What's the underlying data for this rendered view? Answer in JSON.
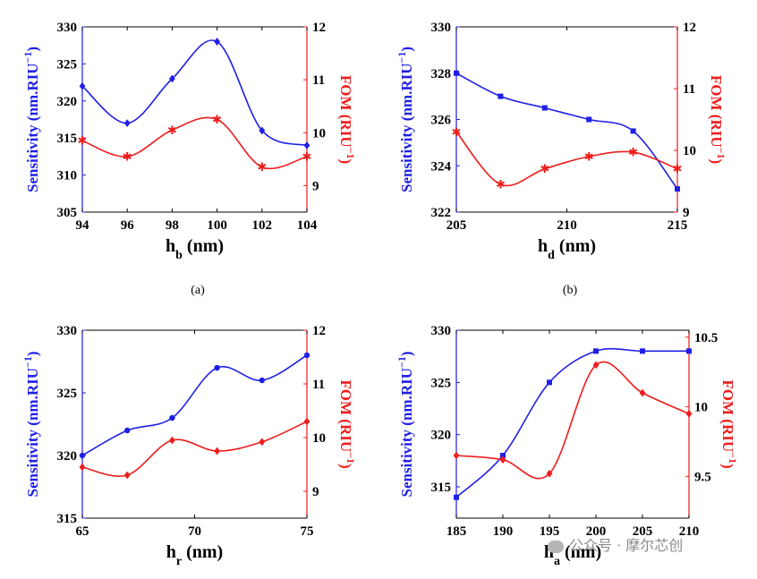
{
  "colors": {
    "left": "#1f1fe6",
    "right": "#ee1c1c",
    "axis": "#000000"
  },
  "watermark": {
    "text": "公众号 · 摩尔芯创",
    "icon": "wechat-icon"
  },
  "chart_data": [
    {
      "type": "line",
      "caption": "(a)",
      "xlabel": "h",
      "xlabel_sub": "b",
      "xlabel_unit": " (nm)",
      "xlim": [
        94,
        104
      ],
      "xticks": [
        94,
        96,
        98,
        100,
        102,
        104
      ],
      "ylabel_left": "Sensitivity (nm.RIU",
      "ylabel_left_close": ")",
      "ylim_left": [
        305,
        330
      ],
      "yticks_left": [
        305,
        310,
        315,
        320,
        325,
        330
      ],
      "ylabel_right": "FOM (RIU",
      "ylabel_right_close": ")",
      "ylim_right": [
        8.5,
        12
      ],
      "yticks_right": [
        9,
        10,
        11,
        12
      ],
      "sup": "−1",
      "series": [
        {
          "axis": "left",
          "marker": "diamond",
          "x": [
            94,
            96,
            98,
            100,
            102,
            104
          ],
          "values": [
            322,
            317,
            323,
            328,
            316,
            314
          ]
        },
        {
          "axis": "right",
          "marker": "star",
          "x": [
            94,
            96,
            98,
            100,
            102,
            104
          ],
          "values": [
            9.85,
            9.55,
            10.05,
            10.25,
            9.35,
            9.55
          ]
        }
      ]
    },
    {
      "type": "line",
      "caption": "(b)",
      "xlabel": "h",
      "xlabel_sub": "d",
      "xlabel_unit": " (nm)",
      "xlim": [
        205,
        215
      ],
      "xticks": [
        205,
        210,
        215
      ],
      "ylabel_left": "Sensitivity (nm.RIU",
      "ylabel_left_close": ")",
      "ylim_left": [
        322,
        330
      ],
      "yticks_left": [
        322,
        324,
        326,
        328,
        330
      ],
      "ylabel_right": "FOM (RIU",
      "ylabel_right_close": ")",
      "ylim_right": [
        9,
        12
      ],
      "yticks_right": [
        9,
        10,
        11,
        12
      ],
      "sup": "−1",
      "series": [
        {
          "axis": "left",
          "marker": "square",
          "x": [
            205,
            207,
            209,
            211,
            213,
            215
          ],
          "values": [
            328,
            327,
            326.5,
            326,
            325.5,
            323
          ]
        },
        {
          "axis": "right",
          "marker": "star",
          "x": [
            205,
            207,
            209,
            211,
            213,
            215
          ],
          "values": [
            10.3,
            9.45,
            9.7,
            9.9,
            9.97,
            9.7
          ]
        }
      ]
    },
    {
      "type": "line",
      "caption": "",
      "xlabel": "h",
      "xlabel_sub": "r",
      "xlabel_unit": " (nm)",
      "xlim": [
        65,
        75
      ],
      "xticks": [
        65,
        70,
        75
      ],
      "ylabel_left": "Sensitivity (nm.RIU",
      "ylabel_left_close": ")",
      "ylim_left": [
        315,
        330
      ],
      "yticks_left": [
        315,
        320,
        325,
        330
      ],
      "ylabel_right": "FOM (RIU",
      "ylabel_right_close": ")",
      "ylim_right": [
        8.5,
        12
      ],
      "yticks_right": [
        9,
        10,
        11,
        12
      ],
      "sup": "−1",
      "series": [
        {
          "axis": "left",
          "marker": "circle",
          "x": [
            65,
            67,
            69,
            71,
            73,
            75
          ],
          "values": [
            320,
            322,
            323,
            327,
            326,
            328
          ]
        },
        {
          "axis": "right",
          "marker": "diamond",
          "x": [
            65,
            67,
            69,
            71,
            73,
            75
          ],
          "values": [
            9.45,
            9.3,
            9.95,
            9.75,
            9.92,
            10.3
          ]
        }
      ]
    },
    {
      "type": "line",
      "caption": "",
      "xlabel": "h",
      "xlabel_sub": "a",
      "xlabel_unit": " (nm)",
      "xlim": [
        185,
        210
      ],
      "xticks": [
        185,
        190,
        195,
        200,
        205,
        210
      ],
      "ylabel_left": "Sensitivity (nm.RIU",
      "ylabel_left_close": ")",
      "ylim_left": [
        312,
        330
      ],
      "yticks_left": [
        315,
        320,
        325,
        330
      ],
      "ylabel_right": "FOM (RIU",
      "ylabel_right_close": ")",
      "ylim_right": [
        9.2,
        10.55
      ],
      "yticks_right": [
        9.5,
        10,
        10.5
      ],
      "sup": "−1",
      "series": [
        {
          "axis": "left",
          "marker": "square",
          "x": [
            185,
            190,
            195,
            200,
            205,
            210
          ],
          "values": [
            314,
            318,
            325,
            328,
            328,
            328
          ]
        },
        {
          "axis": "right",
          "marker": "diamond",
          "x": [
            185,
            190,
            195,
            200,
            205,
            210
          ],
          "values": [
            9.65,
            9.62,
            9.52,
            10.3,
            10.1,
            9.95
          ]
        }
      ]
    }
  ]
}
